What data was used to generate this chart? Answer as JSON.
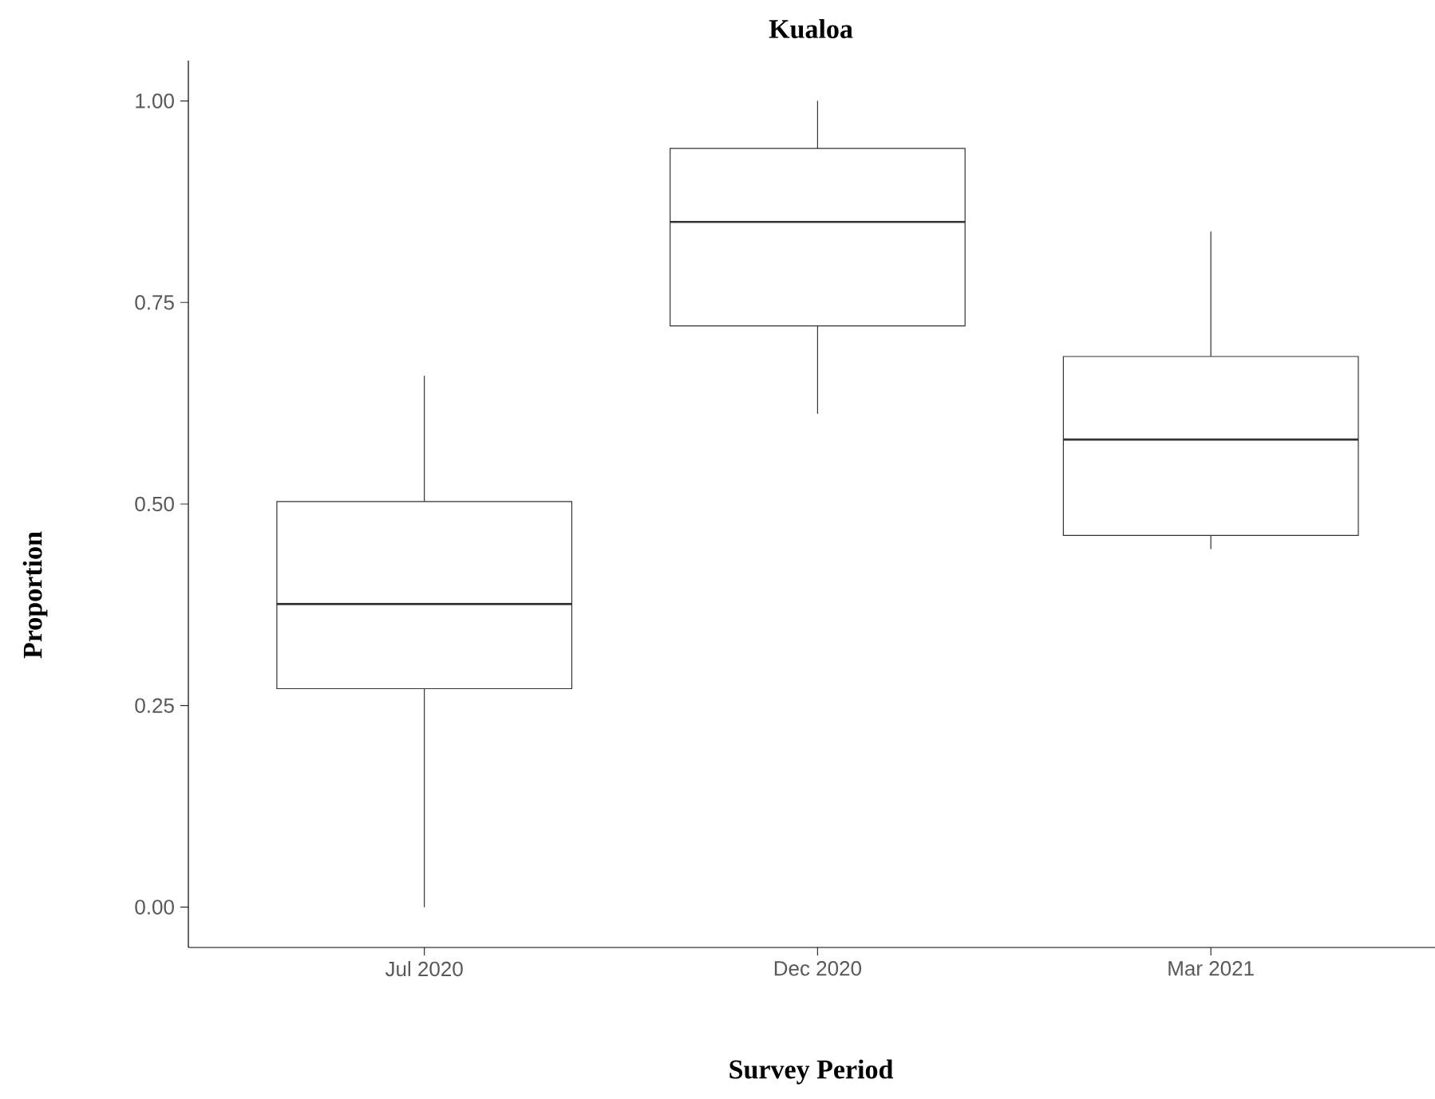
{
  "chart_data": {
    "type": "box",
    "title": "Kualoa",
    "xlabel": "Survey Period",
    "ylabel": "Proportion",
    "categories": [
      "Jul 2020",
      "Dec 2020",
      "Mar 2021"
    ],
    "boxes": [
      {
        "low": 0.0,
        "q1": 0.271,
        "median": 0.376,
        "q3": 0.503,
        "high": 0.659
      },
      {
        "low": 0.612,
        "q1": 0.721,
        "median": 0.85,
        "q3": 0.941,
        "high": 1.0
      },
      {
        "low": 0.444,
        "q1": 0.461,
        "median": 0.58,
        "q3": 0.683,
        "high": 0.838
      }
    ],
    "ylim": [
      -0.05,
      1.05
    ],
    "yticks": [
      {
        "value": 0,
        "label": "0.00"
      },
      {
        "value": 0.25,
        "label": "0.25"
      },
      {
        "value": 0.5,
        "label": "0.50"
      },
      {
        "value": 0.75,
        "label": "0.75"
      },
      {
        "value": 1,
        "label": "1.00"
      }
    ]
  }
}
